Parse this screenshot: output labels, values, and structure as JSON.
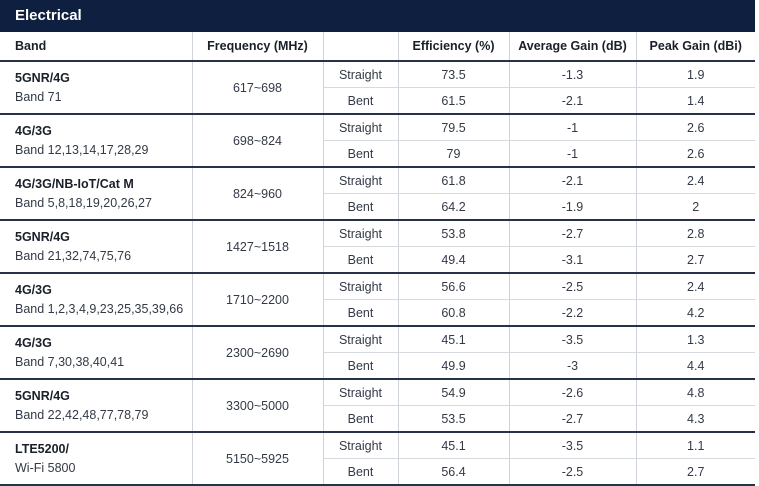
{
  "section_title": "Electrical",
  "headers": {
    "band": "Band",
    "frequency": "Frequency (MHz)",
    "condition": "",
    "efficiency": "Efficiency (%)",
    "avg_gain": "Average Gain (dB)",
    "peak_gain": "Peak Gain (dBi)"
  },
  "groups": [
    {
      "name": "5GNR/4G",
      "bands": "Band 71",
      "freq": "617~698",
      "rows": [
        {
          "cond": "Straight",
          "eff": "73.5",
          "avg": "-1.3",
          "peak": "1.9"
        },
        {
          "cond": "Bent",
          "eff": "61.5",
          "avg": "-2.1",
          "peak": "1.4"
        }
      ]
    },
    {
      "name": "4G/3G",
      "bands": "Band 12,13,14,17,28,29",
      "freq": "698~824",
      "rows": [
        {
          "cond": "Straight",
          "eff": "79.5",
          "avg": "-1",
          "peak": "2.6"
        },
        {
          "cond": "Bent",
          "eff": "79",
          "avg": "-1",
          "peak": "2.6"
        }
      ]
    },
    {
      "name": "4G/3G/NB-IoT/Cat M",
      "bands": "Band 5,8,18,19,20,26,27",
      "freq": "824~960",
      "rows": [
        {
          "cond": "Straight",
          "eff": "61.8",
          "avg": "-2.1",
          "peak": "2.4"
        },
        {
          "cond": "Bent",
          "eff": "64.2",
          "avg": "-1.9",
          "peak": "2"
        }
      ]
    },
    {
      "name": "5GNR/4G",
      "bands": "Band 21,32,74,75,76",
      "freq": "1427~1518",
      "rows": [
        {
          "cond": "Straight",
          "eff": "53.8",
          "avg": "-2.7",
          "peak": "2.8"
        },
        {
          "cond": "Bent",
          "eff": "49.4",
          "avg": "-3.1",
          "peak": "2.7"
        }
      ]
    },
    {
      "name": "4G/3G",
      "bands": "Band 1,2,3,4,9,23,25,35,39,66",
      "freq": "1710~2200",
      "rows": [
        {
          "cond": "Straight",
          "eff": "56.6",
          "avg": "-2.5",
          "peak": "2.4"
        },
        {
          "cond": "Bent",
          "eff": "60.8",
          "avg": "-2.2",
          "peak": "4.2"
        }
      ]
    },
    {
      "name": "4G/3G",
      "bands": "Band 7,30,38,40,41",
      "freq": "2300~2690",
      "rows": [
        {
          "cond": "Straight",
          "eff": "45.1",
          "avg": "-3.5",
          "peak": "1.3"
        },
        {
          "cond": "Bent",
          "eff": "49.9",
          "avg": "-3",
          "peak": "4.4"
        }
      ]
    },
    {
      "name": "5GNR/4G",
      "bands": "Band 22,42,48,77,78,79",
      "freq": "3300~5000",
      "rows": [
        {
          "cond": "Straight",
          "eff": "54.9",
          "avg": "-2.6",
          "peak": "4.8"
        },
        {
          "cond": "Bent",
          "eff": "53.5",
          "avg": "-2.7",
          "peak": "4.3"
        }
      ]
    },
    {
      "name": "LTE5200/",
      "bands": "Wi-Fi 5800",
      "freq": "5150~5925",
      "rows": [
        {
          "cond": "Straight",
          "eff": "45.1",
          "avg": "-3.5",
          "peak": "1.1"
        },
        {
          "cond": "Bent",
          "eff": "56.4",
          "avg": "-2.5",
          "peak": "2.7"
        }
      ]
    }
  ]
}
